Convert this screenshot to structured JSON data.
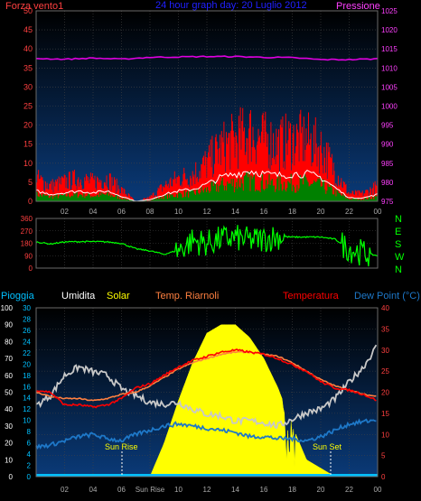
{
  "top_panel": {
    "title": "24 hour graph day: 20 Luglio 2012",
    "left_label": "Forza vento1",
    "right_label": "Pressione",
    "left_ticks": [
      "0",
      "5",
      "10",
      "15",
      "20",
      "25",
      "30",
      "35",
      "40",
      "45",
      "50"
    ],
    "right_ticks": [
      "975",
      "980",
      "985",
      "990",
      "995",
      "1000",
      "1005",
      "1010",
      "1015",
      "1020",
      "1025"
    ],
    "colors": {
      "wind": "#ff0000",
      "gust": "#ffffff",
      "avg": "#008000",
      "pressure": "#e000e0",
      "left_axis": "#ff4040",
      "right_axis": "#ff40ff",
      "title": "#2020ff"
    }
  },
  "x_ticks": [
    "02",
    "04",
    "06",
    "08",
    "10",
    "12",
    "14",
    "16",
    "18",
    "20",
    "22",
    "00"
  ],
  "dir_panel": {
    "left_ticks": [
      "0",
      "90",
      "180",
      "270",
      "360"
    ],
    "compass": [
      "N",
      "W",
      "S",
      "E",
      "N"
    ],
    "color": "#00ff00"
  },
  "bottom_panel": {
    "labels": {
      "rain": "Pioggia",
      "humidity": "Umidita",
      "solar": "Solar",
      "soil_temp": "Temp. Riarnoli",
      "temperature": "Temperatura",
      "dewpoint": "Dew Point (°C)"
    },
    "left_outer_ticks": [
      "0",
      "10",
      "20",
      "30",
      "40",
      "50",
      "60",
      "70",
      "80",
      "90",
      "100"
    ],
    "left_inner_ticks": [
      "0",
      "2",
      "4",
      "6",
      "8",
      "10",
      "12",
      "14",
      "16",
      "18",
      "20",
      "22",
      "24",
      "26",
      "28",
      "30"
    ],
    "right_ticks": [
      "0",
      "5",
      "10",
      "15",
      "20",
      "25",
      "30",
      "35",
      "40"
    ],
    "sun_rise": "Sun Rise",
    "sun_set": "Sun Set",
    "x_special": "Sun Rise",
    "colors": {
      "rain": "#00c0ff",
      "humidity": "#ffffff",
      "solar": "#ffff00",
      "soil": "#ff8040",
      "temperature": "#ff0000",
      "dewpoint": "#1e78c8"
    }
  },
  "chart_data": [
    {
      "type": "line",
      "title": "24 hour graph day: 20 Luglio 2012",
      "x_label": "",
      "x_range_hours": [
        0,
        24
      ],
      "ylim_left": [
        0,
        50
      ],
      "ylim_right": [
        975,
        1025
      ],
      "series": [
        {
          "name": "Forza vento1",
          "axis": "left",
          "x": [
            0,
            1,
            2,
            3,
            4,
            5,
            6,
            7,
            8,
            9,
            10,
            11,
            12,
            13,
            14,
            15,
            16,
            17,
            18,
            19,
            20,
            21,
            22,
            23,
            24
          ],
          "values": [
            6,
            4,
            5,
            6,
            5,
            6,
            3,
            0,
            1,
            4,
            6,
            7,
            10,
            14,
            16,
            18,
            16,
            15,
            16,
            16,
            14,
            8,
            2,
            2,
            4
          ]
        },
        {
          "name": "Pressione",
          "axis": "right",
          "x": [
            0,
            2,
            4,
            6,
            8,
            10,
            12,
            14,
            16,
            18,
            20,
            22,
            24
          ],
          "values": [
            1012.5,
            1012.3,
            1012.6,
            1012.3,
            1012.8,
            1012.9,
            1013,
            1013,
            1012.8,
            1012.7,
            1012.2,
            1012.2,
            1012.4
          ]
        }
      ]
    },
    {
      "type": "line",
      "title": "",
      "ylim": [
        0,
        360
      ],
      "series": [
        {
          "name": "",
          "x": [
            0,
            1,
            2,
            3,
            4,
            5,
            6,
            7,
            8,
            9,
            10,
            11,
            12,
            13,
            14,
            15,
            16,
            17,
            18,
            19,
            20,
            21,
            22,
            23,
            24
          ],
          "values": [
            190,
            175,
            190,
            192,
            192,
            190,
            180,
            140,
            125,
            100,
            130,
            200,
            180,
            210,
            220,
            200,
            210,
            230,
            225,
            225,
            225,
            210,
            140,
            110,
            90
          ]
        }
      ]
    },
    {
      "type": "area",
      "title": "",
      "ylim_left_outer": [
        0,
        100
      ],
      "ylim_left_inner": [
        0,
        30
      ],
      "ylim_right": [
        0,
        40
      ],
      "series": [
        {
          "name": "Solar",
          "x": [
            0,
            5,
            6,
            7,
            8,
            9,
            10,
            11,
            12,
            13,
            14,
            15,
            16,
            17,
            18,
            19,
            20,
            21,
            24
          ],
          "values": [
            0,
            0,
            0,
            0,
            0,
            8,
            18,
            27,
            34,
            36,
            36,
            33,
            28,
            21,
            12,
            4,
            2,
            0,
            0
          ]
        },
        {
          "name": "Umidita",
          "x": [
            0,
            1,
            2,
            3,
            4,
            5,
            6,
            7,
            8,
            9,
            10,
            11,
            12,
            13,
            14,
            15,
            16,
            17,
            18,
            19,
            20,
            21,
            22,
            23,
            24
          ],
          "values": [
            42,
            48,
            60,
            65,
            62,
            60,
            52,
            48,
            44,
            43,
            44,
            40,
            37,
            36,
            33,
            33,
            32,
            30,
            34,
            38,
            40,
            46,
            56,
            65,
            78
          ]
        },
        {
          "name": "Temperatura",
          "x": [
            0,
            1,
            2,
            3,
            4,
            5,
            6,
            7,
            8,
            9,
            10,
            11,
            12,
            13,
            14,
            15,
            16,
            17,
            18,
            19,
            20,
            21,
            22,
            23,
            24
          ],
          "values": [
            20.5,
            20,
            17,
            17,
            16.5,
            17,
            18.5,
            21,
            22,
            24,
            26,
            27.5,
            28.5,
            29.5,
            30,
            29.5,
            29,
            28,
            26.5,
            25,
            22.5,
            21,
            20.5,
            19.5,
            18
          ]
        },
        {
          "name": "Temp. Riarnoli",
          "x": [
            0,
            1,
            2,
            3,
            4,
            5,
            6,
            7,
            8,
            9,
            10,
            11,
            12,
            13,
            14,
            15,
            16,
            17,
            18,
            19,
            20,
            21,
            22,
            23,
            24
          ],
          "values": [
            20,
            19,
            18.5,
            18.5,
            18,
            18.5,
            19.5,
            20,
            21.5,
            23.5,
            25.5,
            27,
            28,
            29,
            29.5,
            29.5,
            29,
            28.5,
            27,
            25,
            23,
            21.5,
            20.5,
            19.5,
            19
          ]
        },
        {
          "name": "Dew Point (°C)",
          "x": [
            0,
            1,
            2,
            3,
            4,
            5,
            6,
            7,
            8,
            9,
            10,
            11,
            12,
            13,
            14,
            15,
            16,
            17,
            18,
            19,
            20,
            21,
            22,
            23,
            24
          ],
          "values": [
            7,
            7.5,
            8.5,
            9.5,
            10,
            9,
            8.5,
            10,
            11,
            12,
            12.5,
            12,
            11.5,
            11,
            10.5,
            9.5,
            9.5,
            9,
            9,
            8.5,
            9.5,
            11,
            12.5,
            13,
            13.5
          ]
        },
        {
          "name": "Pioggia",
          "x": [
            0,
            24
          ],
          "values": [
            0,
            0
          ]
        }
      ]
    }
  ]
}
